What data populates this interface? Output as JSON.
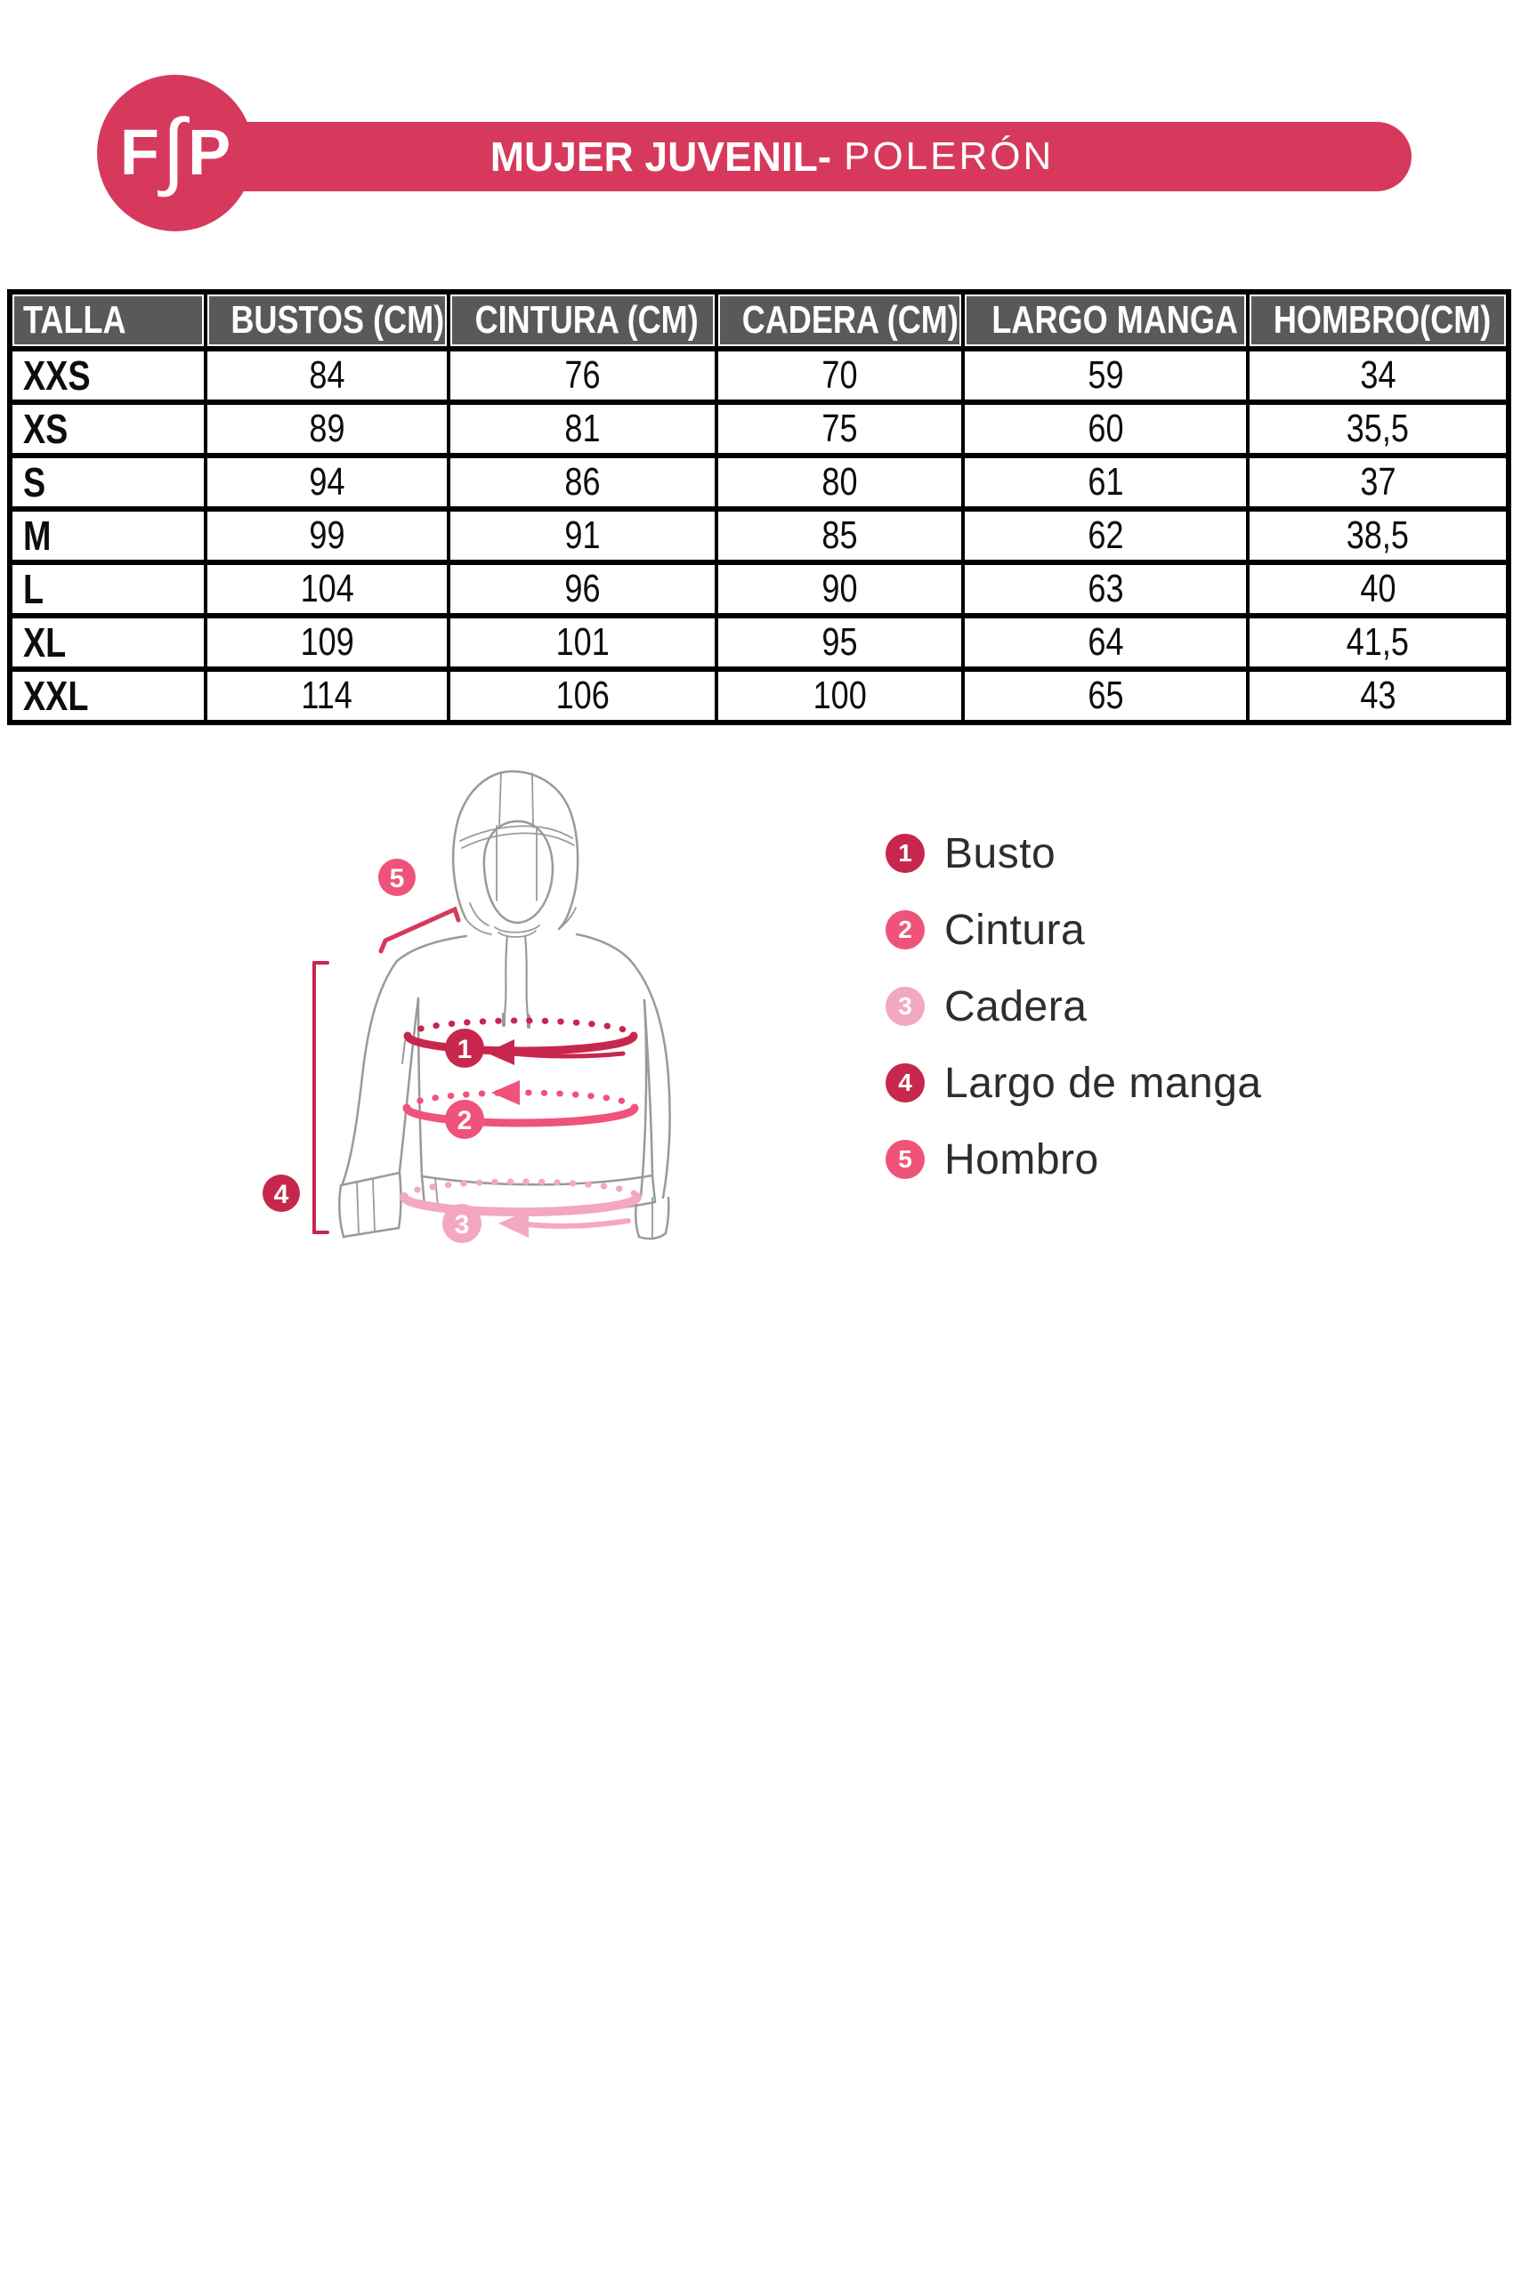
{
  "colors": {
    "crimson": "#D6395C",
    "dark_crimson": "#C8274D",
    "pink": "#EF537A",
    "light_pink": "#F3A8C0",
    "header_gray": "#595959",
    "hoodie_line_gray": "#9a9a9a",
    "legend_text": "#2d2d2d"
  },
  "logo": {
    "letters": [
      "F",
      "∫",
      "P"
    ]
  },
  "banner": {
    "title_bold": "MUJER JUVENIL-",
    "title_light": "POLERÓN"
  },
  "size_table": {
    "columns": [
      "TALLA",
      "BUSTOS (CM)",
      "CINTURA (CM)",
      "CADERA (CM)",
      "LARGO MANGA",
      "HOMBRO(CM)"
    ],
    "rows": [
      {
        "talla": "XXS",
        "values": [
          "84",
          "76",
          "70",
          "59",
          "34"
        ]
      },
      {
        "talla": "XS",
        "values": [
          "89",
          "81",
          "75",
          "60",
          "35,5"
        ]
      },
      {
        "talla": "S",
        "values": [
          "94",
          "86",
          "80",
          "61",
          "37"
        ]
      },
      {
        "talla": "M",
        "values": [
          "99",
          "91",
          "85",
          "62",
          "38,5"
        ]
      },
      {
        "talla": "L",
        "values": [
          "104",
          "96",
          "90",
          "63",
          "40"
        ]
      },
      {
        "talla": "XL",
        "values": [
          "109",
          "101",
          "95",
          "64",
          "41,5"
        ]
      },
      {
        "talla": "XXL",
        "values": [
          "114",
          "106",
          "100",
          "65",
          "43"
        ]
      }
    ]
  },
  "diagram": {
    "markers": [
      {
        "num": "1",
        "color": "#C8274D"
      },
      {
        "num": "2",
        "color": "#EF537A"
      },
      {
        "num": "3",
        "color": "#F3A8C0"
      },
      {
        "num": "4",
        "color": "#C8274D"
      },
      {
        "num": "5",
        "color": "#EF537A"
      }
    ],
    "legend": [
      {
        "num": "1",
        "label": "Busto",
        "color": "#C8274D"
      },
      {
        "num": "2",
        "label": "Cintura",
        "color": "#EF537A"
      },
      {
        "num": "3",
        "label": "Cadera",
        "color": "#F3A8C0"
      },
      {
        "num": "4",
        "label": "Largo de manga",
        "color": "#C8274D"
      },
      {
        "num": "5",
        "label": "Hombro",
        "color": "#EF537A"
      }
    ]
  }
}
